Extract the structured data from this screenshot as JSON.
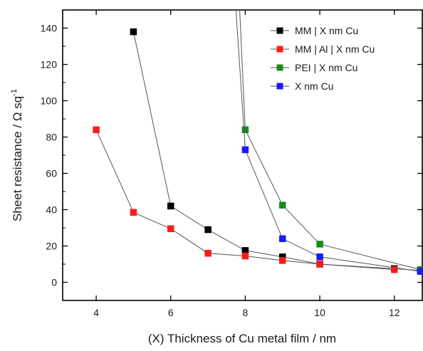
{
  "chart_data": {
    "type": "line",
    "xlabel": "(X) Thickness of Cu metal film / nm",
    "ylabel": "Sheet resistance / Ω sq",
    "ylabel_superscript": "-1",
    "xlim": [
      3.1,
      12.75
    ],
    "ylim": [
      -10,
      150
    ],
    "x_ticks": [
      4,
      6,
      8,
      10,
      12
    ],
    "y_ticks": [
      0,
      20,
      40,
      60,
      80,
      100,
      120,
      140
    ],
    "legend_position": "top-right",
    "series": [
      {
        "name": "MM | X nm Cu",
        "color": "#000000",
        "x": [
          5,
          6,
          7,
          8,
          9,
          10,
          12,
          12.7
        ],
        "y": [
          138,
          42,
          29,
          17.5,
          14,
          10,
          7.5,
          6.5
        ]
      },
      {
        "name": "MM | Al | X nm Cu",
        "color": "#ff1a1a",
        "x": [
          4,
          5,
          6,
          7,
          8,
          9,
          10,
          12
        ],
        "y": [
          84,
          38.5,
          29.5,
          16,
          14.5,
          12,
          10,
          7
        ]
      },
      {
        "name": "PEI | X nm Cu",
        "color": "#1a8a1a",
        "x": [
          7.85,
          8,
          9,
          10,
          12.7
        ],
        "y": [
          150,
          84,
          42.5,
          21,
          7
        ],
        "clip_first_point": true
      },
      {
        "name": "X nm Cu",
        "color": "#1a1aff",
        "x": [
          7.75,
          8,
          9,
          10,
          12.7
        ],
        "y": [
          150,
          73,
          24,
          14,
          6
        ],
        "clip_first_point": true
      }
    ]
  }
}
